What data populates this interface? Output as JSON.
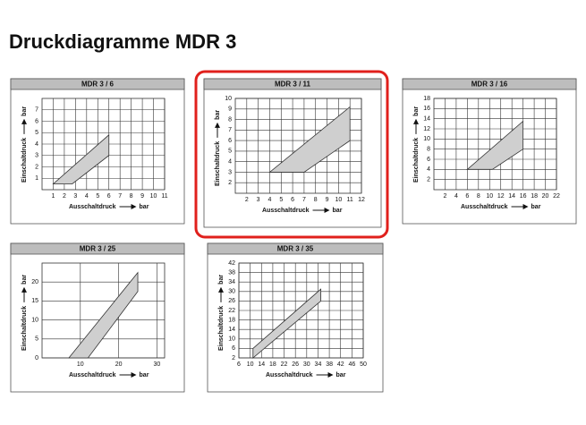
{
  "title": "Druckdiagramme MDR 3",
  "chart_data": [
    {
      "type": "polygon",
      "title": "MDR 3 / 6",
      "x_label": "Ausschaltdruck",
      "x_unit": "bar",
      "y_label": "Einschaltdruck",
      "y_unit": "bar",
      "x": [
        1,
        2.7,
        6,
        6
      ],
      "y": [
        0.5,
        0.5,
        3,
        4.8
      ],
      "color": "#cfcfcf",
      "xlim": [
        0,
        11
      ],
      "xticks": [
        1,
        2,
        3,
        4,
        5,
        6,
        7,
        8,
        9,
        10,
        11
      ],
      "ylim": [
        0,
        8
      ],
      "yticks": [
        1,
        2,
        3,
        4,
        5,
        6,
        7
      ],
      "grid": true
    },
    {
      "type": "polygon",
      "title": "MDR 3 / 11",
      "x_label": "Ausschaltdruck",
      "x_unit": "bar",
      "y_label": "Einschaltdruck",
      "y_unit": "bar",
      "x": [
        4,
        7,
        11,
        11
      ],
      "y": [
        3,
        3,
        6,
        9.2
      ],
      "color": "#cfcfcf",
      "xlim": [
        1,
        12
      ],
      "xticks": [
        2,
        3,
        4,
        5,
        6,
        7,
        8,
        9,
        10,
        11,
        12
      ],
      "ylim": [
        1,
        10
      ],
      "yticks": [
        2,
        3,
        4,
        5,
        6,
        7,
        8,
        9,
        10
      ],
      "grid": true
    },
    {
      "type": "polygon",
      "title": "MDR 3 / 16",
      "x_label": "Ausschaltdruck",
      "x_unit": "bar",
      "y_label": "Einschaltdruck",
      "y_unit": "bar",
      "x": [
        6,
        10.5,
        16,
        16
      ],
      "y": [
        4,
        4,
        8,
        13.5
      ],
      "color": "#cfcfcf",
      "xlim": [
        0,
        22
      ],
      "xticks": [
        2,
        4,
        6,
        8,
        10,
        12,
        14,
        16,
        18,
        20,
        22
      ],
      "ylim": [
        0,
        18
      ],
      "yticks": [
        2,
        4,
        6,
        8,
        10,
        12,
        14,
        16,
        18
      ],
      "grid": true
    },
    {
      "type": "polygon",
      "title": "MDR 3 / 25",
      "x_label": "Ausschaltdruck",
      "x_unit": "bar",
      "y_label": "Einschaltdruck",
      "y_unit": "bar",
      "x": [
        7,
        12,
        25,
        25
      ],
      "y": [
        0,
        0,
        17.5,
        22.5
      ],
      "color": "#cfcfcf",
      "xlim": [
        0,
        32
      ],
      "xticks": [
        10,
        20,
        30
      ],
      "ylim": [
        0,
        25
      ],
      "yticks": [
        0,
        5,
        10,
        15,
        20
      ],
      "grid": true
    },
    {
      "type": "polygon",
      "title": "MDR 3 / 35",
      "x_label": "Ausschaltdruck",
      "x_unit": "bar",
      "y_label": "Einschaltdruck",
      "y_unit": "bar",
      "x": [
        11,
        11,
        35,
        35
      ],
      "y": [
        2,
        6,
        31,
        26
      ],
      "color": "#cfcfcf",
      "xlim": [
        6,
        50
      ],
      "xticks": [
        6,
        10,
        14,
        18,
        22,
        26,
        30,
        34,
        38,
        42,
        46,
        50
      ],
      "ylim": [
        2,
        42
      ],
      "yticks": [
        2,
        6,
        10,
        14,
        18,
        22,
        26,
        30,
        34,
        38,
        42
      ],
      "grid": true
    }
  ]
}
